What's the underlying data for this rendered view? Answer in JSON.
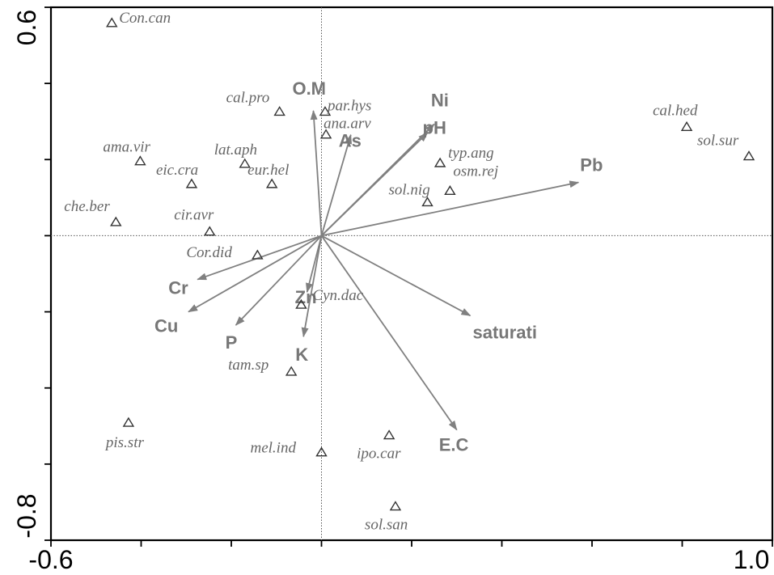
{
  "chart_data": {
    "type": "scatter",
    "title": "",
    "xlabel": "",
    "ylabel": "",
    "xlim": [
      -0.6,
      1.0
    ],
    "ylim": [
      -0.8,
      0.6
    ],
    "x_tick_labels": [
      "-0.6",
      "1.0"
    ],
    "y_tick_labels": [
      "0.6",
      "-0.8"
    ],
    "reference_lines": {
      "x": 0,
      "y": 0,
      "style": "dotted"
    },
    "colors": {
      "axis": "#000000",
      "arrow": "#808080",
      "marker": "#333333",
      "species_text": "#666666",
      "env_text": "#777777"
    },
    "species": [
      {
        "name": "Con.can",
        "x": -0.465,
        "y": 0.558
      },
      {
        "name": "cal.pro",
        "x": -0.093,
        "y": 0.325
      },
      {
        "name": "par.hys",
        "x": 0.008,
        "y": 0.325
      },
      {
        "name": "ana.arv",
        "x": 0.01,
        "y": 0.265
      },
      {
        "name": "ama.vir",
        "x": -0.402,
        "y": 0.195
      },
      {
        "name": "lat.aph",
        "x": -0.17,
        "y": 0.188
      },
      {
        "name": "eic.cra",
        "x": -0.288,
        "y": 0.135
      },
      {
        "name": "eur.hel",
        "x": -0.11,
        "y": 0.135
      },
      {
        "name": "che.ber",
        "x": -0.456,
        "y": 0.035
      },
      {
        "name": "cir.avr",
        "x": -0.248,
        "y": 0.01
      },
      {
        "name": "Cor.did",
        "x": -0.142,
        "y": -0.052
      },
      {
        "name": "Cyn.dac",
        "x": -0.045,
        "y": -0.182
      },
      {
        "name": "tam.sp",
        "x": -0.067,
        "y": -0.358
      },
      {
        "name": "pis.str",
        "x": -0.428,
        "y": -0.492
      },
      {
        "name": "mel.ind",
        "x": 0.0,
        "y": -0.57
      },
      {
        "name": "ipo.car",
        "x": 0.15,
        "y": -0.525
      },
      {
        "name": "sol.san",
        "x": 0.164,
        "y": -0.712
      },
      {
        "name": "typ.ang",
        "x": 0.263,
        "y": 0.19
      },
      {
        "name": "osm.rej",
        "x": 0.285,
        "y": 0.117
      },
      {
        "name": "sol.nig",
        "x": 0.235,
        "y": 0.087
      },
      {
        "name": "cal.hed",
        "x": 0.81,
        "y": 0.285
      },
      {
        "name": "sol.sur",
        "x": 0.948,
        "y": 0.208
      }
    ],
    "environmental_vectors": [
      {
        "name": "O.M",
        "x": -0.018,
        "y": 0.328
      },
      {
        "name": "Ni",
        "x": 0.25,
        "y": 0.293
      },
      {
        "name": "pH",
        "x": 0.235,
        "y": 0.27
      },
      {
        "name": "As",
        "x": 0.065,
        "y": 0.265
      },
      {
        "name": "Pb",
        "x": 0.57,
        "y": 0.14
      },
      {
        "name": "saturati",
        "x": 0.33,
        "y": -0.21
      },
      {
        "name": "E.C",
        "x": 0.3,
        "y": -0.51
      },
      {
        "name": "Cr",
        "x": -0.275,
        "y": -0.115
      },
      {
        "name": "Cu",
        "x": -0.295,
        "y": -0.2
      },
      {
        "name": "P",
        "x": -0.19,
        "y": -0.235
      },
      {
        "name": "Zn",
        "x": -0.032,
        "y": -0.148
      },
      {
        "name": "K",
        "x": -0.04,
        "y": -0.265
      }
    ]
  }
}
